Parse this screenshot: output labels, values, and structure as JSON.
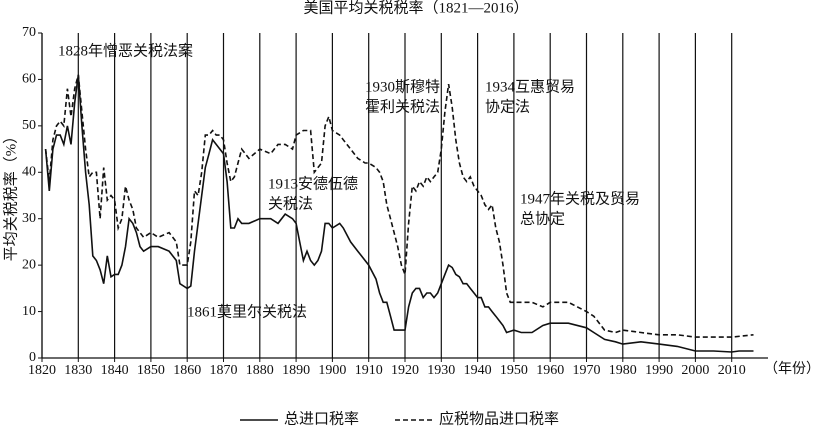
{
  "chart_data": {
    "type": "line",
    "title": "美国平均关税税率（1821—2016）",
    "y_label": "平均关税税率（%）",
    "x_label": "（年份）",
    "xlim": [
      1820,
      2020
    ],
    "xticks": [
      1820,
      1830,
      1840,
      1850,
      1860,
      1870,
      1880,
      1890,
      1900,
      1910,
      1920,
      1930,
      1940,
      1950,
      1960,
      1970,
      1980,
      1990,
      2000,
      2010
    ],
    "ylim": [
      0,
      70
    ],
    "yticks": [
      0,
      10,
      20,
      30,
      40,
      50,
      60,
      70
    ],
    "grid": "x",
    "series": [
      {
        "name": "总进口税率",
        "color": "#111111",
        "style": "solid",
        "x": [
          1821,
          1822,
          1823,
          1824,
          1825,
          1826,
          1827,
          1828,
          1829,
          1830,
          1831,
          1832,
          1833,
          1834,
          1835,
          1836,
          1837,
          1838,
          1839,
          1840,
          1841,
          1842,
          1843,
          1844,
          1845,
          1846,
          1847,
          1848,
          1850,
          1852,
          1855,
          1857,
          1858,
          1860,
          1861,
          1862,
          1863,
          1864,
          1865,
          1866,
          1867,
          1868,
          1869,
          1870,
          1871,
          1872,
          1873,
          1874,
          1875,
          1877,
          1880,
          1883,
          1885,
          1887,
          1889,
          1890,
          1891,
          1892,
          1893,
          1894,
          1895,
          1896,
          1897,
          1898,
          1899,
          1900,
          1902,
          1903,
          1905,
          1907,
          1909,
          1910,
          1912,
          1913,
          1914,
          1915,
          1916,
          1917,
          1918,
          1920,
          1921,
          1922,
          1923,
          1924,
          1925,
          1926,
          1927,
          1928,
          1929,
          1930,
          1931,
          1932,
          1933,
          1934,
          1935,
          1936,
          1937,
          1938,
          1939,
          1940,
          1941,
          1942,
          1943,
          1944,
          1945,
          1946,
          1947,
          1948,
          1950,
          1952,
          1955,
          1958,
          1960,
          1965,
          1970,
          1972,
          1975,
          1978,
          1980,
          1985,
          1990,
          1995,
          2000,
          2005,
          2010,
          2012,
          2016
        ],
        "values": [
          45,
          36,
          45,
          48,
          48,
          46,
          50,
          46,
          55,
          61,
          50,
          40,
          33,
          22,
          21,
          19,
          16,
          22,
          17.5,
          18,
          18,
          20,
          24,
          30,
          29,
          27,
          24,
          23,
          24,
          24,
          23,
          21,
          16,
          15,
          15.5,
          23,
          29,
          35,
          41,
          44,
          47,
          46,
          45,
          44,
          38,
          28,
          28,
          30,
          29,
          29,
          30,
          30,
          29,
          31,
          30,
          29,
          25,
          21,
          23,
          21,
          20,
          21,
          23,
          29,
          29,
          28,
          29,
          28,
          25,
          23,
          21,
          20,
          17,
          14,
          12,
          12,
          9,
          6,
          6,
          6,
          11,
          14,
          15,
          15,
          13,
          14,
          14,
          13,
          14,
          16,
          18,
          20,
          19.5,
          18,
          17.5,
          16,
          16,
          15,
          14,
          13,
          13,
          11,
          11,
          10,
          9,
          8,
          7,
          5.5,
          6,
          5.5,
          5.5,
          7,
          7.5,
          7.5,
          6.5,
          5.5,
          4,
          3.5,
          3,
          3.5,
          3,
          2.5,
          1.5,
          1.5,
          1.3,
          1.5,
          1.5
        ]
      },
      {
        "name": "应税物品进口税率",
        "color": "#111111",
        "style": "dashed",
        "x": [
          1821,
          1822,
          1823,
          1824,
          1825,
          1826,
          1827,
          1828,
          1829,
          1830,
          1831,
          1832,
          1833,
          1834,
          1835,
          1836,
          1837,
          1838,
          1839,
          1840,
          1841,
          1842,
          1843,
          1844,
          1845,
          1846,
          1847,
          1848,
          1850,
          1852,
          1855,
          1857,
          1858,
          1860,
          1861,
          1862,
          1863,
          1864,
          1865,
          1866,
          1867,
          1868,
          1869,
          1870,
          1871,
          1872,
          1873,
          1874,
          1875,
          1877,
          1880,
          1883,
          1885,
          1887,
          1889,
          1890,
          1892,
          1894,
          1895,
          1897,
          1898,
          1899,
          1900,
          1902,
          1903,
          1905,
          1907,
          1909,
          1910,
          1912,
          1913,
          1914,
          1915,
          1916,
          1917,
          1918,
          1919,
          1920,
          1921,
          1922,
          1923,
          1924,
          1925,
          1926,
          1927,
          1928,
          1929,
          1930,
          1931,
          1932,
          1933,
          1934,
          1935,
          1936,
          1937,
          1938,
          1939,
          1940,
          1941,
          1942,
          1943,
          1944,
          1945,
          1946,
          1947,
          1948,
          1949,
          1950,
          1955,
          1958,
          1960,
          1965,
          1970,
          1972,
          1975,
          1978,
          1980,
          1985,
          1990,
          1995,
          2000,
          2005,
          2010,
          2016
        ],
        "values": [
          45,
          38,
          47,
          50,
          51,
          50,
          58,
          52,
          58,
          61,
          53,
          45,
          39,
          40,
          40,
          30,
          41,
          34,
          35,
          34,
          28,
          30,
          37,
          34,
          32,
          28,
          27,
          26,
          27,
          26,
          27,
          25,
          20,
          20,
          25,
          36,
          35,
          40,
          48,
          48,
          49,
          48,
          48,
          47,
          42,
          38,
          39,
          42,
          45,
          43,
          45,
          44,
          46,
          46,
          45,
          48,
          49,
          49,
          40,
          42,
          50,
          52,
          49,
          48,
          47,
          45,
          43,
          42,
          42,
          41,
          40,
          38,
          33,
          30,
          27,
          24,
          20,
          18,
          29,
          37,
          36,
          38,
          37,
          39,
          38,
          39,
          40,
          45,
          53,
          59,
          54,
          47,
          42,
          39,
          38,
          39,
          37,
          36,
          35,
          33,
          32,
          33,
          28,
          25,
          20,
          14,
          12,
          12,
          12,
          11,
          12,
          12,
          10,
          9,
          6,
          5.5,
          6,
          5.5,
          5,
          5,
          4.5,
          4.5,
          4.5,
          5
        ]
      }
    ],
    "annotations": [
      {
        "lines": [
          "1828年憎恶关税法案"
        ]
      },
      {
        "lines": [
          "1930斯穆特",
          "霍利关税法"
        ]
      },
      {
        "lines": [
          "1934互惠贸易",
          "协定法"
        ]
      },
      {
        "lines": [
          "1913安德伍德",
          "关税法"
        ]
      },
      {
        "lines": [
          "1947年关税及贸易",
          "总协定"
        ]
      },
      {
        "lines": [
          "1861莫里尔关税法"
        ]
      }
    ]
  }
}
